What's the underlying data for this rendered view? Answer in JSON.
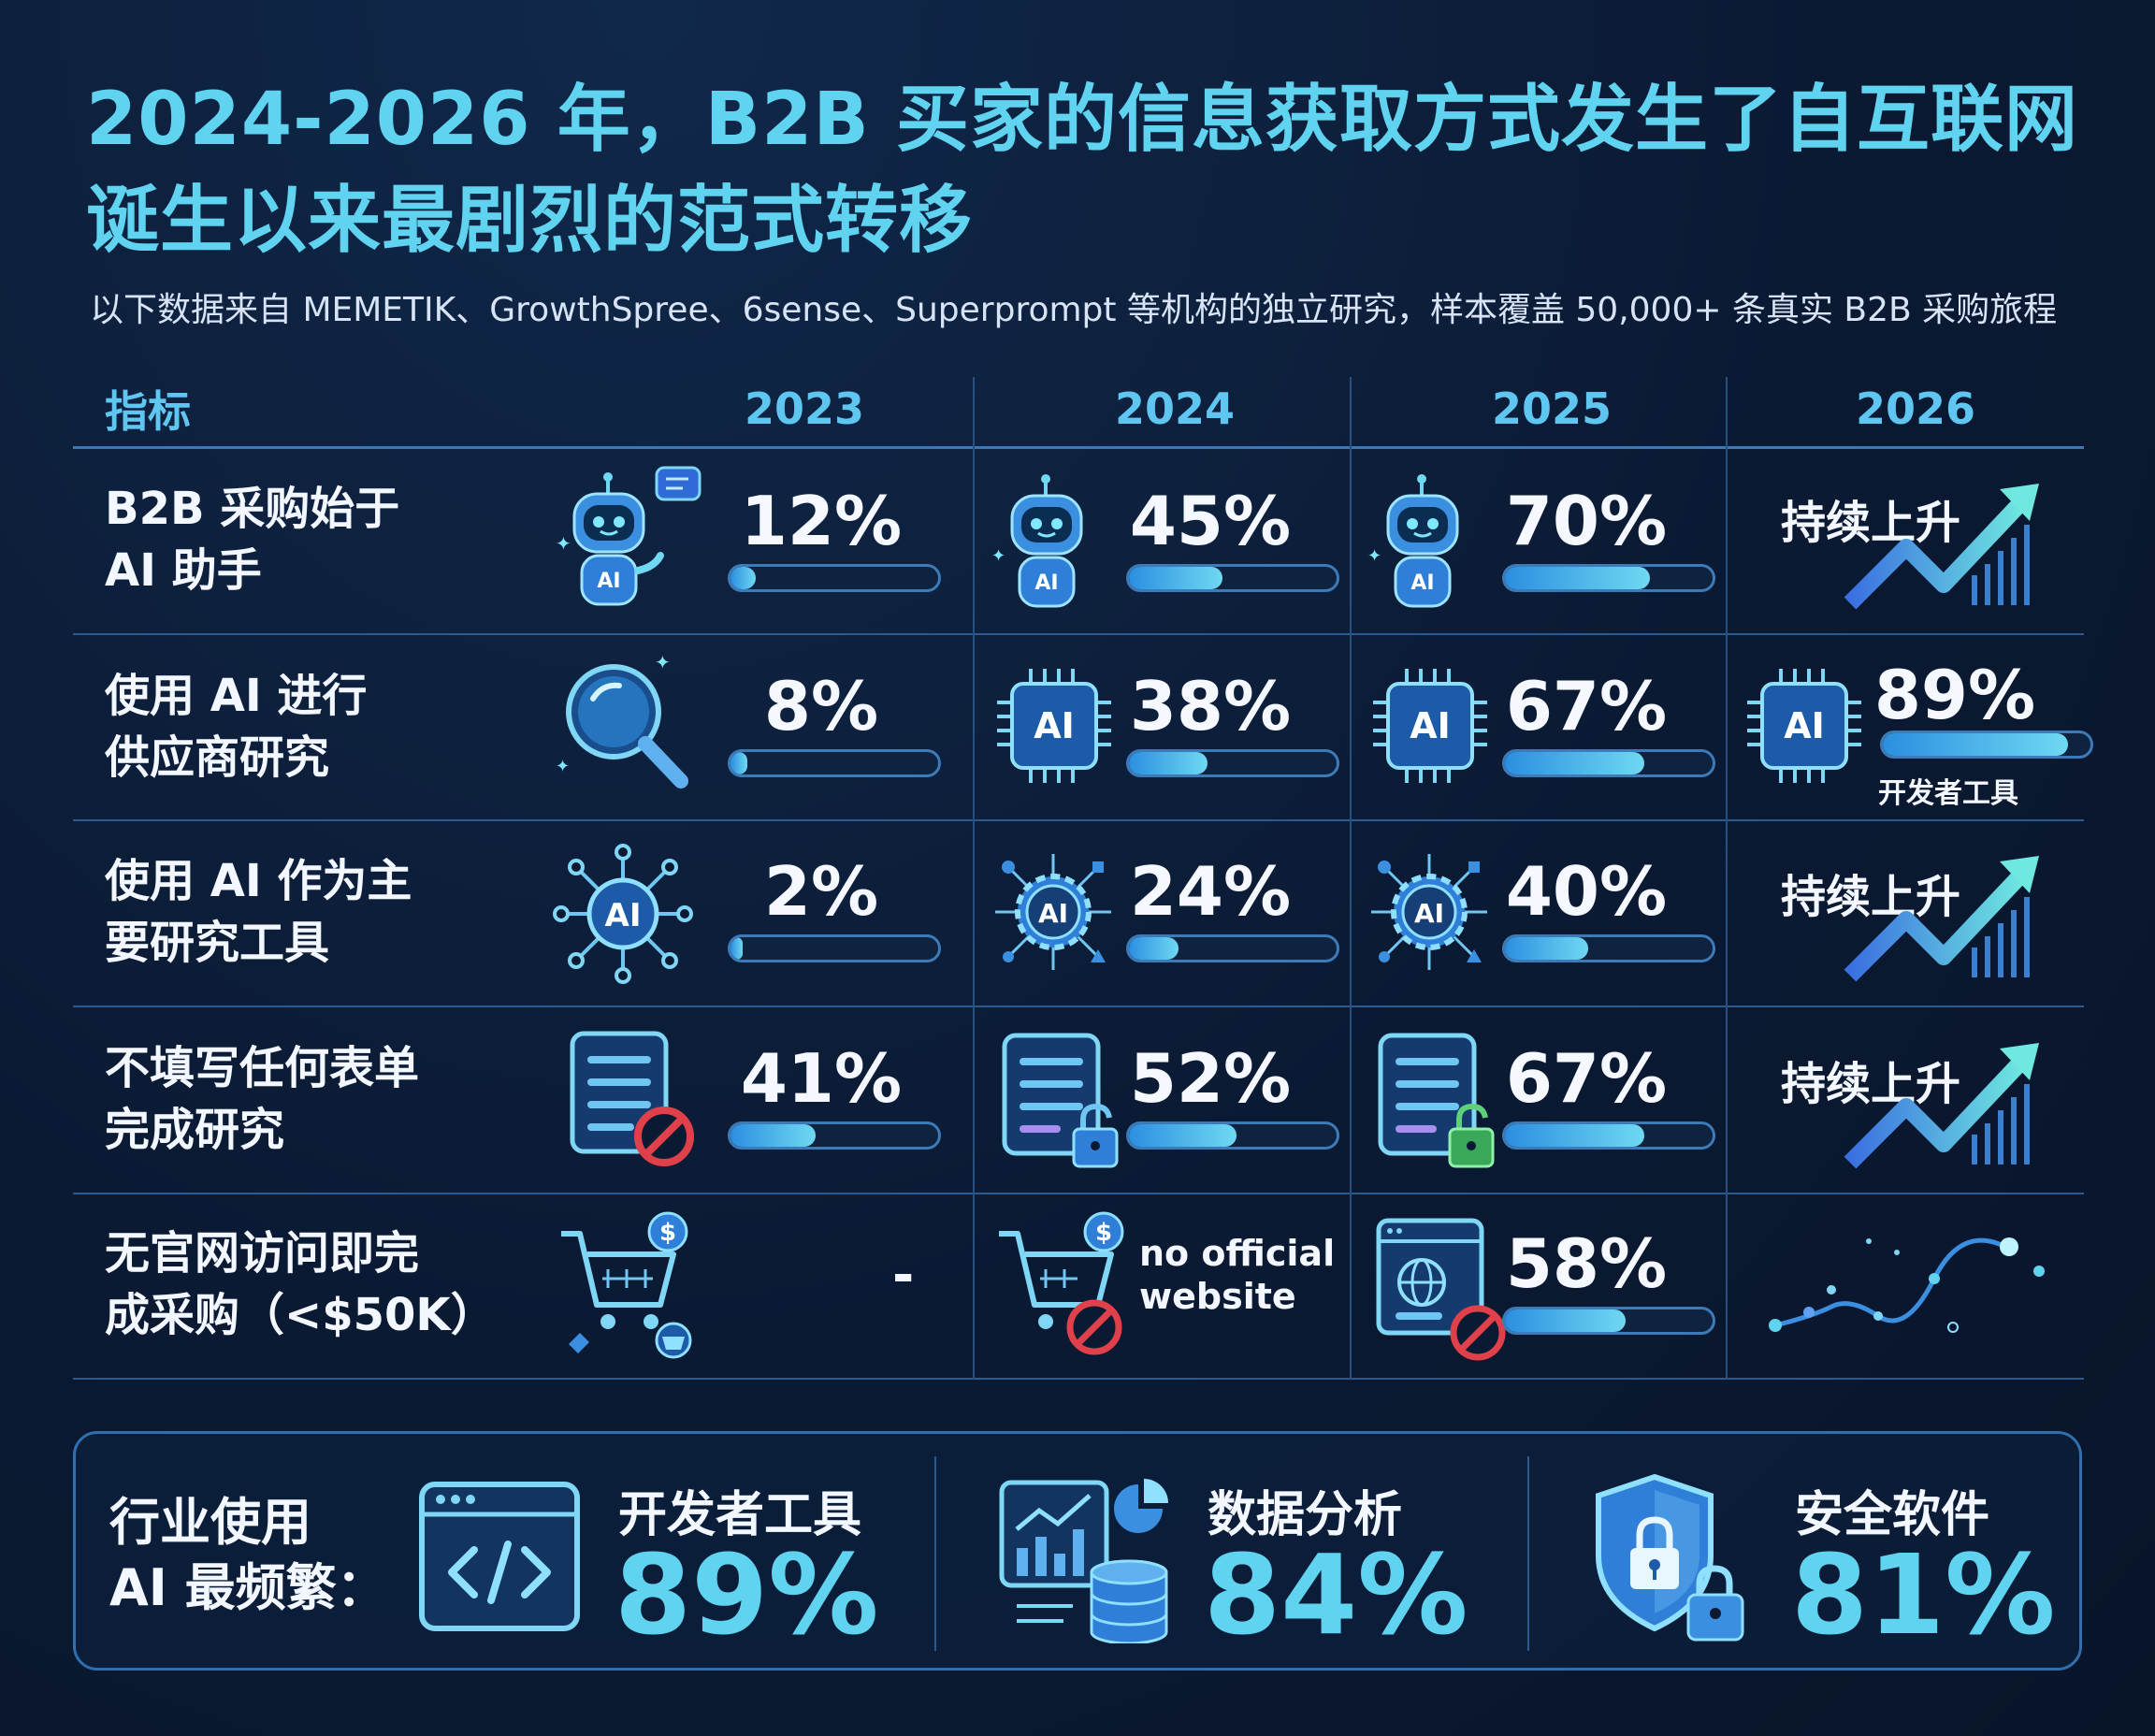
{
  "title": "2024-2026 年，B2B 买家的信息获取方式发生了自互联网诞生以来最剧烈的范式转移",
  "subtitle": "以下数据来自 MEMETIK、GrowthSpree、6sense、Superprompt 等机构的独立研究，样本覆盖 50,000+ 条真实 B2B 采购旅程",
  "table": {
    "header": {
      "metric": "指标",
      "years": [
        "2023",
        "2024",
        "2025",
        "2026"
      ]
    },
    "rows": [
      {
        "label_lines": [
          "B2B 采购始于",
          "AI 助手"
        ],
        "values": [
          "12%",
          "45%",
          "70%",
          "持续上升"
        ],
        "fractions": [
          0.12,
          0.45,
          0.7
        ]
      },
      {
        "label_lines": [
          "使用 AI 进行",
          "供应商研究"
        ],
        "values": [
          "8%",
          "38%",
          "67%",
          "89%"
        ],
        "fractions": [
          0.08,
          0.38,
          0.67,
          0.89
        ],
        "note_2026": "开发者工具"
      },
      {
        "label_lines": [
          "使用 AI 作为主",
          "要研究工具"
        ],
        "values": [
          "2%",
          "24%",
          "40%",
          "持续上升"
        ],
        "fractions": [
          0.02,
          0.24,
          0.4
        ]
      },
      {
        "label_lines": [
          "不填写任何表单",
          "完成研究"
        ],
        "values": [
          "41%",
          "52%",
          "67%",
          "持续上升"
        ],
        "fractions": [
          0.41,
          0.52,
          0.67
        ]
      },
      {
        "label_lines": [
          "无官网访问即完",
          "成采购（<$50K）"
        ],
        "values": [
          "-",
          "no official website",
          "58%",
          ""
        ],
        "fractions": [
          null,
          null,
          0.58
        ]
      }
    ]
  },
  "industry_panel": {
    "label_lines": [
      "行业使用",
      "AI 最频繁："
    ],
    "items": [
      {
        "name": "开发者工具",
        "value": "89%",
        "icon": "code-window-icon"
      },
      {
        "name": "数据分析",
        "value": "84%",
        "icon": "analytics-database-icon"
      },
      {
        "name": "安全软件",
        "value": "81%",
        "icon": "security-shield-icon"
      }
    ]
  },
  "colors": {
    "background": "#0b1a33",
    "accent": "#5fd3ef",
    "header": "#5fc6f2",
    "no_symbol": "#e0404a"
  }
}
